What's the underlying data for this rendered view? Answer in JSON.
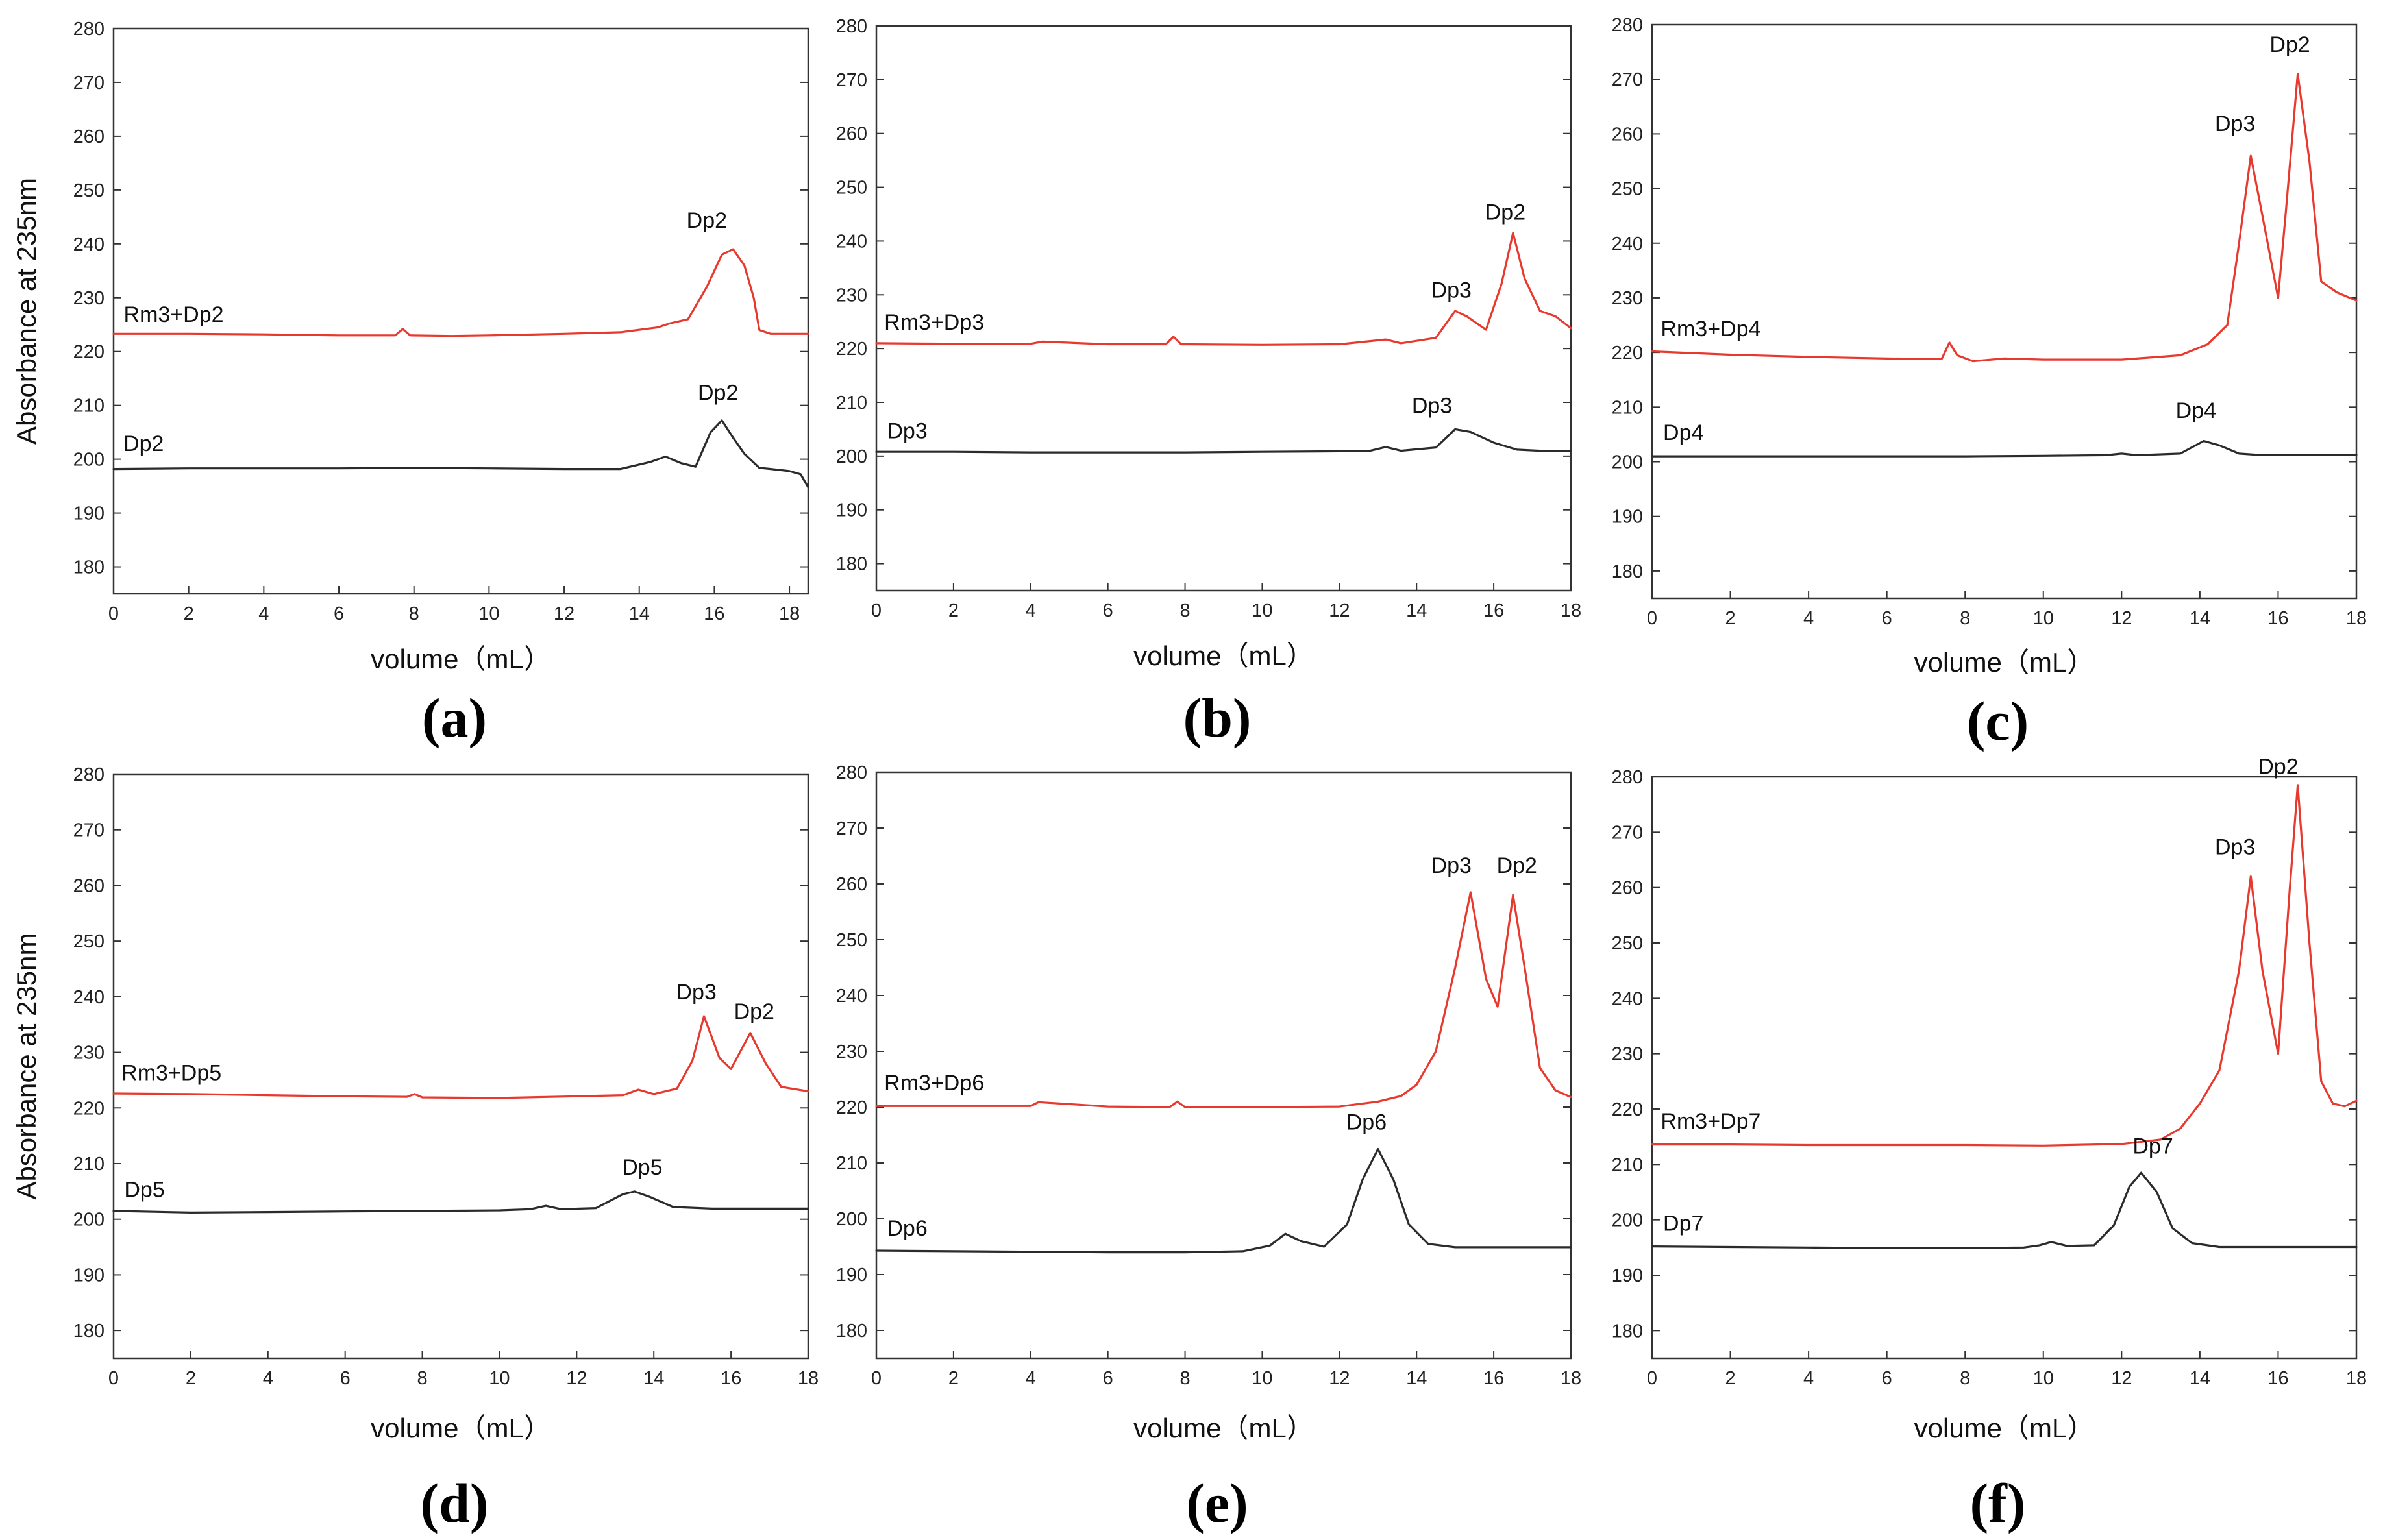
{
  "figure_colors": {
    "rm3_trace": "#e8392e",
    "reference_trace": "#2b2b2b",
    "axis": "#333333"
  },
  "chart_data": [
    {
      "type": "line",
      "panel_label": "(a)",
      "xlabel": "volume（mL）",
      "ylabel": "Absorbance at 235nm",
      "xlim": [
        0,
        18.5
      ],
      "ylim": [
        175,
        280
      ],
      "xticks": [
        0,
        2,
        4,
        6,
        8,
        10,
        12,
        14,
        16,
        18
      ],
      "yticks": [
        180,
        190,
        200,
        210,
        220,
        230,
        240,
        250,
        260,
        270,
        280
      ],
      "series": [
        {
          "name": "Rm3+Dp2",
          "color": "#e8392e",
          "x": [
            0,
            2,
            4,
            6,
            7.5,
            7.7,
            7.9,
            9,
            10,
            12,
            13.5,
            14.5,
            14.8,
            15.3,
            15.8,
            16.2,
            16.5,
            16.8,
            17.05,
            17.2,
            17.5,
            18.5
          ],
          "y": [
            223.3,
            223.3,
            223.2,
            223.0,
            223.0,
            224.2,
            223.0,
            222.9,
            223.0,
            223.3,
            223.6,
            224.5,
            225.2,
            226.0,
            232.0,
            238.0,
            239.0,
            236.0,
            230.0,
            224.0,
            223.3,
            223.3
          ]
        },
        {
          "name": "Dp2",
          "color": "#2b2b2b",
          "x": [
            0,
            2,
            4,
            6,
            8,
            10,
            12,
            13.5,
            14.3,
            14.7,
            15.1,
            15.5,
            15.9,
            16.2,
            16.5,
            16.8,
            17.2,
            17.5,
            18.0,
            18.3,
            18.5
          ],
          "y": [
            198.2,
            198.3,
            198.3,
            198.3,
            198.4,
            198.3,
            198.2,
            198.2,
            199.5,
            200.5,
            199.3,
            198.6,
            205.0,
            207.2,
            204.0,
            201.0,
            198.4,
            198.2,
            197.8,
            197.2,
            194.8
          ]
        }
      ],
      "series_labels": [
        {
          "text": "Rm3+Dp2",
          "at": [
            1.6,
            225.5
          ]
        },
        {
          "text": "Dp2",
          "at": [
            0.8,
            201.5
          ]
        }
      ],
      "annotations": [
        {
          "text": "Dp2",
          "x": 15.8,
          "y": 243
        },
        {
          "text": "Dp2",
          "x": 16.1,
          "y": 211
        }
      ]
    },
    {
      "type": "line",
      "panel_label": "(b)",
      "xlabel": "volume（mL）",
      "ylabel": "",
      "xlim": [
        0,
        18
      ],
      "ylim": [
        175,
        280
      ],
      "xticks": [
        0,
        2,
        4,
        6,
        8,
        10,
        12,
        14,
        16,
        18
      ],
      "yticks": [
        180,
        190,
        200,
        210,
        220,
        230,
        240,
        250,
        260,
        270,
        280
      ],
      "series": [
        {
          "name": "Rm3+Dp3",
          "color": "#e8392e",
          "x": [
            0,
            2,
            4,
            4.3,
            6,
            7.5,
            7.7,
            7.9,
            10,
            12,
            13.2,
            13.6,
            14.5,
            15.0,
            15.3,
            15.8,
            16.2,
            16.5,
            16.8,
            17.2,
            17.6,
            18
          ],
          "y": [
            221.0,
            220.9,
            220.9,
            221.3,
            220.8,
            220.8,
            222.2,
            220.8,
            220.7,
            220.8,
            221.7,
            221.0,
            222.0,
            227.0,
            226.0,
            223.5,
            232.0,
            241.5,
            233.0,
            227.0,
            226.0,
            223.8
          ]
        },
        {
          "name": "Dp3",
          "color": "#2b2b2b",
          "x": [
            0,
            2,
            4,
            6,
            8,
            10,
            12,
            12.8,
            13.2,
            13.6,
            14.5,
            15.0,
            15.4,
            16.0,
            16.6,
            17.2,
            18
          ],
          "y": [
            200.8,
            200.8,
            200.7,
            200.7,
            200.7,
            200.8,
            200.9,
            201.0,
            201.7,
            201.0,
            201.6,
            205.0,
            204.5,
            202.5,
            201.2,
            201.0,
            201.0
          ]
        }
      ],
      "series_labels": [
        {
          "text": "Rm3+Dp3",
          "at": [
            1.5,
            223.5
          ]
        },
        {
          "text": "Dp3",
          "at": [
            0.8,
            203.3
          ]
        }
      ],
      "annotations": [
        {
          "text": "Dp3",
          "x": 14.9,
          "y": 229.5
        },
        {
          "text": "Dp2",
          "x": 16.3,
          "y": 244
        },
        {
          "text": "Dp3",
          "x": 14.4,
          "y": 208
        }
      ]
    },
    {
      "type": "line",
      "panel_label": "(c)",
      "xlabel": "volume（mL）",
      "ylabel": "",
      "xlim": [
        0,
        18
      ],
      "ylim": [
        175,
        280
      ],
      "xticks": [
        0,
        2,
        4,
        6,
        8,
        10,
        12,
        14,
        16,
        18
      ],
      "yticks": [
        180,
        190,
        200,
        210,
        220,
        230,
        240,
        250,
        260,
        270,
        280
      ],
      "series": [
        {
          "name": "Rm3+Dp4",
          "color": "#e8392e",
          "x": [
            0,
            2,
            4,
            6,
            7.4,
            7.6,
            7.8,
            8.2,
            9,
            10,
            12,
            13.5,
            14.2,
            14.7,
            15.0,
            15.3,
            15.6,
            16.0,
            16.2,
            16.5,
            16.8,
            17.1,
            17.5,
            18
          ],
          "y": [
            220.2,
            219.6,
            219.2,
            218.9,
            218.8,
            221.8,
            219.5,
            218.4,
            218.9,
            218.7,
            218.7,
            219.5,
            221.5,
            225.0,
            240.0,
            256.0,
            245.0,
            230.0,
            246.0,
            271.0,
            255.0,
            233.0,
            231.0,
            229.5
          ]
        },
        {
          "name": "Dp4",
          "color": "#2b2b2b",
          "x": [
            0,
            2,
            4,
            6,
            8,
            10,
            11.6,
            12.0,
            12.4,
            13.5,
            14.1,
            14.5,
            15.0,
            15.6,
            16.5,
            18
          ],
          "y": [
            201.0,
            201.0,
            201.0,
            201.0,
            201.0,
            201.1,
            201.2,
            201.5,
            201.2,
            201.5,
            203.8,
            203.0,
            201.5,
            201.2,
            201.3,
            201.3
          ]
        }
      ],
      "series_labels": [
        {
          "text": "Rm3+Dp4",
          "at": [
            1.5,
            223
          ]
        },
        {
          "text": "Dp4",
          "at": [
            0.8,
            204
          ]
        }
      ],
      "annotations": [
        {
          "text": "Dp3",
          "x": 14.9,
          "y": 260.5
        },
        {
          "text": "Dp2",
          "x": 16.3,
          "y": 275
        },
        {
          "text": "Dp4",
          "x": 13.9,
          "y": 208
        }
      ]
    },
    {
      "type": "line",
      "panel_label": "(d)",
      "xlabel": "volume（mL）",
      "ylabel": "Absorbance at 235nm",
      "xlim": [
        0,
        18
      ],
      "ylim": [
        175,
        280
      ],
      "xticks": [
        0,
        2,
        4,
        6,
        8,
        10,
        12,
        14,
        16,
        18
      ],
      "yticks": [
        180,
        190,
        200,
        210,
        220,
        230,
        240,
        250,
        260,
        270,
        280
      ],
      "series": [
        {
          "name": "Rm3+Dp5",
          "color": "#e8392e",
          "x": [
            0,
            2,
            4,
            6,
            7.6,
            7.8,
            8.0,
            10,
            12,
            13.2,
            13.6,
            14.0,
            14.6,
            15.0,
            15.3,
            15.7,
            16.0,
            16.5,
            16.9,
            17.3,
            18
          ],
          "y": [
            222.6,
            222.5,
            222.3,
            222.1,
            222.0,
            222.5,
            221.9,
            221.8,
            222.1,
            222.3,
            223.3,
            222.5,
            223.5,
            228.5,
            236.5,
            229.0,
            227.0,
            233.5,
            228.0,
            223.8,
            223.0
          ]
        },
        {
          "name": "Dp5",
          "color": "#2b2b2b",
          "x": [
            0,
            2,
            4,
            6,
            8,
            10,
            10.8,
            11.2,
            11.6,
            12.5,
            13.2,
            13.5,
            13.9,
            14.5,
            15.5,
            18
          ],
          "y": [
            201.5,
            201.2,
            201.3,
            201.4,
            201.5,
            201.6,
            201.8,
            202.4,
            201.8,
            202.0,
            204.5,
            205.0,
            204.0,
            202.2,
            201.9,
            201.9
          ]
        }
      ],
      "series_labels": [
        {
          "text": "Rm3+Dp5",
          "at": [
            1.5,
            225
          ]
        },
        {
          "text": "Dp5",
          "at": [
            0.8,
            204
          ]
        }
      ],
      "annotations": [
        {
          "text": "Dp3",
          "x": 15.1,
          "y": 239.5
        },
        {
          "text": "Dp2",
          "x": 16.6,
          "y": 236
        },
        {
          "text": "Dp5",
          "x": 13.7,
          "y": 208
        }
      ]
    },
    {
      "type": "line",
      "panel_label": "(e)",
      "xlabel": "volume（mL）",
      "ylabel": "",
      "xlim": [
        0,
        18
      ],
      "ylim": [
        175,
        280
      ],
      "xticks": [
        0,
        2,
        4,
        6,
        8,
        10,
        12,
        14,
        16,
        18
      ],
      "yticks": [
        180,
        190,
        200,
        210,
        220,
        230,
        240,
        250,
        260,
        270,
        280
      ],
      "series": [
        {
          "name": "Rm3+Dp6",
          "color": "#e8392e",
          "x": [
            0,
            2,
            4,
            4.2,
            6,
            7.6,
            7.8,
            8.0,
            10,
            12,
            13.0,
            13.6,
            14.0,
            14.5,
            15.0,
            15.4,
            15.8,
            16.1,
            16.5,
            16.8,
            17.2,
            17.6,
            18
          ],
          "y": [
            220.2,
            220.2,
            220.2,
            220.9,
            220.1,
            220.0,
            221.0,
            220.0,
            220.0,
            220.1,
            221.0,
            222.0,
            224.0,
            230.0,
            245.0,
            258.5,
            243.0,
            238.0,
            258.0,
            245.0,
            227.0,
            223.0,
            221.8
          ]
        },
        {
          "name": "Dp6",
          "color": "#2b2b2b",
          "x": [
            0,
            2,
            4,
            6,
            8,
            9.5,
            10.2,
            10.6,
            11.0,
            11.6,
            12.2,
            12.6,
            13.0,
            13.4,
            13.8,
            14.3,
            15.0,
            16,
            18
          ],
          "y": [
            194.3,
            194.2,
            194.1,
            194.0,
            194.0,
            194.2,
            195.2,
            197.3,
            196.0,
            195.0,
            199.0,
            207.0,
            212.5,
            207.0,
            199.0,
            195.5,
            194.9,
            194.9,
            194.9
          ]
        }
      ],
      "series_labels": [
        {
          "text": "Rm3+Dp6",
          "at": [
            1.5,
            223
          ]
        },
        {
          "text": "Dp6",
          "at": [
            0.8,
            197
          ]
        }
      ],
      "annotations": [
        {
          "text": "Dp3",
          "x": 14.9,
          "y": 262
        },
        {
          "text": "Dp2",
          "x": 16.6,
          "y": 262
        },
        {
          "text": "Dp6",
          "x": 12.7,
          "y": 216
        }
      ]
    },
    {
      "type": "line",
      "panel_label": "(f)",
      "xlabel": "volume（mL）",
      "ylabel": "",
      "xlim": [
        0,
        18
      ],
      "ylim": [
        175,
        280
      ],
      "xticks": [
        0,
        2,
        4,
        6,
        8,
        10,
        12,
        14,
        16,
        18
      ],
      "yticks": [
        180,
        190,
        200,
        210,
        220,
        230,
        240,
        250,
        260,
        270,
        280
      ],
      "series": [
        {
          "name": "Rm3+Dp7",
          "color": "#e8392e",
          "x": [
            0,
            2,
            4,
            6,
            8,
            10,
            12,
            13.0,
            13.5,
            14.0,
            14.5,
            15.0,
            15.3,
            15.6,
            16.0,
            16.3,
            16.5,
            16.8,
            17.1,
            17.4,
            17.7,
            18
          ],
          "y": [
            213.6,
            213.6,
            213.5,
            213.5,
            213.5,
            213.4,
            213.7,
            214.5,
            216.5,
            221.0,
            227.0,
            245.0,
            262.0,
            245.0,
            230.0,
            260.0,
            278.5,
            250.0,
            225.0,
            221.0,
            220.5,
            221.5
          ]
        },
        {
          "name": "Dp7",
          "color": "#2b2b2b",
          "x": [
            0,
            2,
            4,
            6,
            8,
            9.5,
            9.9,
            10.2,
            10.6,
            11.3,
            11.8,
            12.2,
            12.5,
            12.9,
            13.3,
            13.8,
            14.5,
            16,
            18
          ],
          "y": [
            195.2,
            195.1,
            195.0,
            194.9,
            194.9,
            195.0,
            195.4,
            196.0,
            195.3,
            195.4,
            199.0,
            206.0,
            208.5,
            205.0,
            198.5,
            195.8,
            195.1,
            195.1,
            195.1
          ]
        }
      ],
      "series_labels": [
        {
          "text": "Rm3+Dp7",
          "at": [
            1.5,
            216.5
          ]
        },
        {
          "text": "Dp7",
          "at": [
            0.8,
            198
          ]
        }
      ],
      "annotations": [
        {
          "text": "Dp3",
          "x": 14.9,
          "y": 266
        },
        {
          "text": "Dp2",
          "x": 16.0,
          "y": 280.5
        },
        {
          "text": "Dp7",
          "x": 12.8,
          "y": 212
        }
      ]
    }
  ]
}
